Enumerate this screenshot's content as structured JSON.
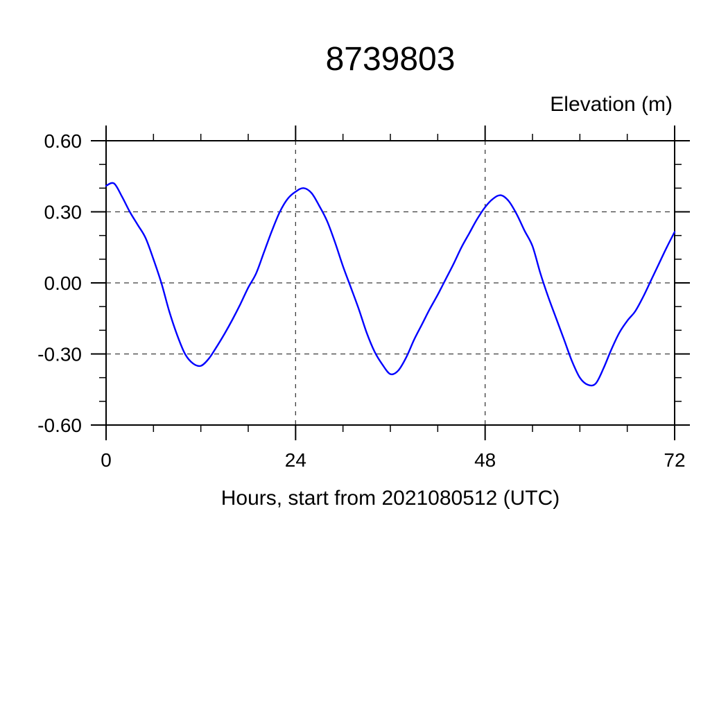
{
  "window": {
    "background": "#ffffff"
  },
  "header": {
    "title": "8739803"
  },
  "axes": {
    "y_label": "Elevation (m)",
    "x_label": "Hours, start from 2021080512 (UTC)"
  },
  "chart_data": {
    "type": "line",
    "title": "8739803",
    "xlabel": "Hours, start from 2021080512 (UTC)",
    "ylabel": "Elevation (m)",
    "xlim": [
      0,
      72
    ],
    "ylim": [
      -0.6,
      0.6
    ],
    "x_major_ticks": [
      0,
      24,
      48,
      72
    ],
    "x_tick_labels": [
      "0",
      "24",
      "48",
      "72"
    ],
    "x_minor_tick_step": 6,
    "y_major_ticks": [
      0.6,
      0.3,
      0.0,
      -0.3,
      -0.6
    ],
    "y_tick_labels": [
      "0.60",
      "0.30",
      "0.00",
      "-0.30",
      "-0.60"
    ],
    "y_minor_tick_step": 0.1,
    "x_gridlines": [
      24,
      48
    ],
    "y_gridlines": [
      0.3,
      0.0,
      -0.3
    ],
    "grid": true,
    "grid_style": "dashed",
    "legend": false,
    "colors": {
      "line": "#0000ff",
      "frame": "#000000",
      "grid": "#3c3c3c",
      "text": "#000000",
      "background": "#ffffff"
    },
    "series": [
      {
        "name": "tidal_elevation_m",
        "x_start": 0,
        "x_step": 1,
        "values": [
          0.41,
          0.42,
          0.365,
          0.3,
          0.245,
          0.19,
          0.1,
          0.0,
          -0.12,
          -0.22,
          -0.3,
          -0.34,
          -0.35,
          -0.32,
          -0.27,
          -0.215,
          -0.155,
          -0.09,
          -0.02,
          0.04,
          0.13,
          0.22,
          0.3,
          0.355,
          0.385,
          0.4,
          0.38,
          0.325,
          0.26,
          0.17,
          0.07,
          -0.02,
          -0.11,
          -0.21,
          -0.29,
          -0.345,
          -0.385,
          -0.37,
          -0.315,
          -0.24,
          -0.175,
          -0.11,
          -0.05,
          0.015,
          0.08,
          0.15,
          0.21,
          0.27,
          0.32,
          0.355,
          0.37,
          0.345,
          0.29,
          0.22,
          0.155,
          0.04,
          -0.06,
          -0.15,
          -0.24,
          -0.33,
          -0.4,
          -0.43,
          -0.425,
          -0.36,
          -0.28,
          -0.21,
          -0.16,
          -0.12,
          -0.06,
          0.01,
          0.08,
          0.15,
          0.215
        ]
      }
    ]
  }
}
